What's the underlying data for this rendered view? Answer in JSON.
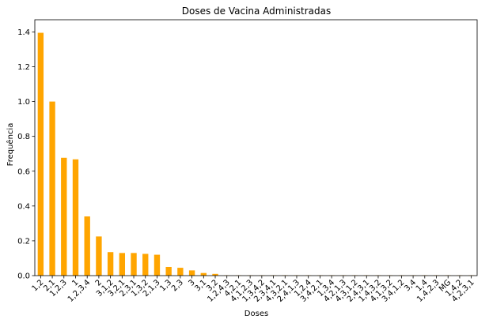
{
  "chart_data": {
    "type": "bar",
    "title": "Doses de Vacina Administradas",
    "xlabel": "Doses",
    "ylabel": "Frequência",
    "ylim": [
      0,
      1.47
    ],
    "yticks": [
      "0.0",
      "0.2",
      "0.4",
      "0.6",
      "0.8",
      "1.0",
      "1.2",
      "1.4"
    ],
    "bar_color": "#ffa500",
    "grid": false,
    "categories": [
      "1,2",
      "2,1",
      "1,2,3",
      "1",
      "1,2,3,4",
      "2",
      "3,1,2",
      "3,2,1",
      "2,3,1",
      "1,3,2",
      "2,1,3",
      "1,3",
      "2,3",
      "3",
      "3,1",
      "3,2",
      "1,2,4,3",
      "4,2,1",
      "4,1,2,3",
      "1,3,4,2",
      "2,3,4,1",
      "4,3,2,1",
      "2,4,1,3",
      "1,2,4",
      "3,4,2,1",
      "1,3,4",
      "4,2,1,3",
      "4,3,1,2",
      "2,4,3,1",
      "1,4,3,2",
      "4,1,3,2",
      "3,4,1,2",
      "3,4",
      "1,4",
      "1,4,2,3",
      "MG",
      "1,4,2",
      "4,2,3,1"
    ],
    "values": [
      1.395,
      1.0,
      0.677,
      0.668,
      0.34,
      0.225,
      0.135,
      0.13,
      0.13,
      0.125,
      0.12,
      0.05,
      0.045,
      0.03,
      0.015,
      0.01,
      0.002,
      0.002,
      0.002,
      0.002,
      0.002,
      0.002,
      0.002,
      0.002,
      0.002,
      0.002,
      0.002,
      0.002,
      0.002,
      0.002,
      0.002,
      0.002,
      0.002,
      0.002,
      0.002,
      0.002,
      0.002,
      0.002
    ]
  }
}
